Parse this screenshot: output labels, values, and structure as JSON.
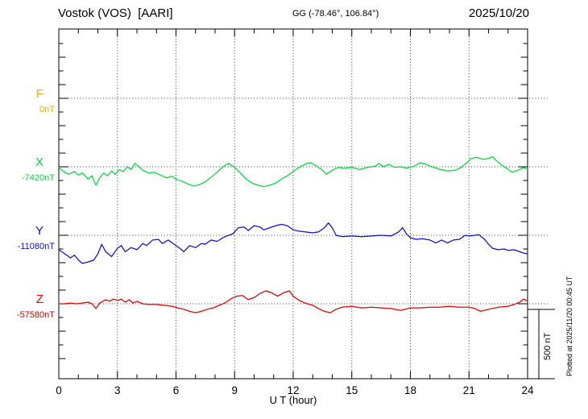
{
  "header": {
    "station_title": "Vostok (VOS)  [AARI]",
    "coordinates": "GG (-78.46°, 106.84°)",
    "date": "2025/10/20"
  },
  "annotations": {
    "scale_bar_label": "500 nT",
    "plotted_at": "Plotted at 2025/11/20 00:45 UT"
  },
  "chart_data": {
    "type": "line",
    "title": "Vostok (VOS) [AARI] magnetogram 2025/10/20",
    "xlabel": "U T (hour)",
    "x_axis": {
      "min": 0,
      "max": 24,
      "major_tick_interval": 3,
      "minor_tick_interval": 1,
      "tick_labels": [
        "0",
        "3",
        "6",
        "9",
        "12",
        "15",
        "18",
        "21",
        "24"
      ]
    },
    "y_axis": {
      "units": "nT",
      "minor_tick_nT": 100,
      "baseline_spacing_nT": 500,
      "grid": "dotted horizontal line at each component baseline"
    },
    "scale_bar_nT": 500,
    "legend_position": "left-margin",
    "series": [
      {
        "name": "F",
        "color": "#FFA800",
        "baseline_value_label": "0nT",
        "points": []
      },
      {
        "name": "X",
        "color": "#00D83C",
        "baseline_value_label": "-7420nT",
        "points": [
          [
            0,
            -5
          ],
          [
            0.2,
            -30
          ],
          [
            0.5,
            -55
          ],
          [
            0.8,
            -35
          ],
          [
            1,
            -60
          ],
          [
            1.2,
            -45
          ],
          [
            1.5,
            -90
          ],
          [
            1.7,
            -65
          ],
          [
            1.9,
            -135
          ],
          [
            2.1,
            -80
          ],
          [
            2.3,
            -45
          ],
          [
            2.5,
            -65
          ],
          [
            2.7,
            -30
          ],
          [
            2.9,
            -55
          ],
          [
            3.1,
            -20
          ],
          [
            3.3,
            -35
          ],
          [
            3.5,
            0
          ],
          [
            3.7,
            -20
          ],
          [
            3.9,
            25
          ],
          [
            4.1,
            0
          ],
          [
            4.3,
            -25
          ],
          [
            4.6,
            -45
          ],
          [
            4.9,
            -40
          ],
          [
            5.2,
            -60
          ],
          [
            5.5,
            -80
          ],
          [
            5.8,
            -70
          ],
          [
            6,
            -90
          ],
          [
            6.3,
            -105
          ],
          [
            6.6,
            -125
          ],
          [
            6.9,
            -140
          ],
          [
            7.2,
            -130
          ],
          [
            7.5,
            -110
          ],
          [
            7.8,
            -75
          ],
          [
            8.1,
            -40
          ],
          [
            8.4,
            0
          ],
          [
            8.7,
            25
          ],
          [
            9,
            -5
          ],
          [
            9.3,
            -45
          ],
          [
            9.6,
            -90
          ],
          [
            9.9,
            -120
          ],
          [
            10.2,
            -135
          ],
          [
            10.5,
            -145
          ],
          [
            10.8,
            -135
          ],
          [
            11.1,
            -120
          ],
          [
            11.4,
            -90
          ],
          [
            11.7,
            -65
          ],
          [
            12,
            -35
          ],
          [
            12.4,
            5
          ],
          [
            12.7,
            25
          ],
          [
            12.9,
            30
          ],
          [
            13.2,
            5
          ],
          [
            13.5,
            -25
          ],
          [
            13.7,
            -55
          ],
          [
            14,
            -25
          ],
          [
            14.3,
            -5
          ],
          [
            14.6,
            -10
          ],
          [
            15,
            -5
          ],
          [
            15.4,
            -20
          ],
          [
            15.8,
            -5
          ],
          [
            16.2,
            5
          ],
          [
            16.4,
            25
          ],
          [
            16.6,
            0
          ],
          [
            16.9,
            18
          ],
          [
            17.2,
            -5
          ],
          [
            17.5,
            0
          ],
          [
            17.8,
            -10
          ],
          [
            18.2,
            5
          ],
          [
            18.5,
            30
          ],
          [
            18.8,
            18
          ],
          [
            19.2,
            -5
          ],
          [
            19.5,
            -18
          ],
          [
            19.9,
            -30
          ],
          [
            20.3,
            -25
          ],
          [
            20.6,
            -5
          ],
          [
            20.9,
            30
          ],
          [
            21.1,
            60
          ],
          [
            21.4,
            70
          ],
          [
            21.7,
            55
          ],
          [
            22,
            60
          ],
          [
            22.2,
            75
          ],
          [
            22.4,
            45
          ],
          [
            22.7,
            10
          ],
          [
            23,
            -18
          ],
          [
            23.2,
            -40
          ],
          [
            23.5,
            -25
          ],
          [
            23.8,
            -5
          ],
          [
            24,
            -18
          ]
        ]
      },
      {
        "name": "Y",
        "color": "#0F0FD0",
        "baseline_value_label": "-11080nT",
        "points": [
          [
            0,
            -105
          ],
          [
            0.3,
            -135
          ],
          [
            0.6,
            -165
          ],
          [
            0.8,
            -145
          ],
          [
            1,
            -180
          ],
          [
            1.2,
            -205
          ],
          [
            1.5,
            -195
          ],
          [
            1.8,
            -180
          ],
          [
            2,
            -135
          ],
          [
            2.2,
            -65
          ],
          [
            2.4,
            -120
          ],
          [
            2.7,
            -155
          ],
          [
            3,
            -95
          ],
          [
            3.2,
            -75
          ],
          [
            3.4,
            -120
          ],
          [
            3.7,
            -90
          ],
          [
            4,
            -105
          ],
          [
            4.3,
            -60
          ],
          [
            4.5,
            -75
          ],
          [
            4.8,
            -35
          ],
          [
            5.1,
            -30
          ],
          [
            5.3,
            -60
          ],
          [
            5.6,
            -35
          ],
          [
            5.9,
            -65
          ],
          [
            6.2,
            -95
          ],
          [
            6.4,
            -120
          ],
          [
            6.7,
            -75
          ],
          [
            7,
            -90
          ],
          [
            7.3,
            -60
          ],
          [
            7.5,
            -65
          ],
          [
            7.8,
            -35
          ],
          [
            8.1,
            -45
          ],
          [
            8.4,
            -18
          ],
          [
            8.6,
            -5
          ],
          [
            8.9,
            10
          ],
          [
            9.2,
            55
          ],
          [
            9.5,
            60
          ],
          [
            9.7,
            35
          ],
          [
            10,
            70
          ],
          [
            10.3,
            60
          ],
          [
            10.5,
            40
          ],
          [
            10.8,
            55
          ],
          [
            11.1,
            70
          ],
          [
            11.4,
            80
          ],
          [
            11.7,
            70
          ],
          [
            12,
            40
          ],
          [
            12.3,
            30
          ],
          [
            12.6,
            25
          ],
          [
            13,
            18
          ],
          [
            13.3,
            25
          ],
          [
            13.6,
            55
          ],
          [
            13.8,
            90
          ],
          [
            14,
            55
          ],
          [
            14.2,
            0
          ],
          [
            14.5,
            -10
          ],
          [
            15,
            -5
          ],
          [
            15.5,
            -10
          ],
          [
            16,
            -5
          ],
          [
            16.5,
            0
          ],
          [
            17,
            -5
          ],
          [
            17.4,
            25
          ],
          [
            17.6,
            55
          ],
          [
            17.8,
            10
          ],
          [
            18,
            -18
          ],
          [
            18.3,
            -30
          ],
          [
            18.6,
            -25
          ],
          [
            19,
            -35
          ],
          [
            19.3,
            -55
          ],
          [
            19.6,
            -35
          ],
          [
            19.9,
            -55
          ],
          [
            20.2,
            -35
          ],
          [
            20.5,
            -30
          ],
          [
            20.8,
            0
          ],
          [
            21,
            -5
          ],
          [
            21.3,
            0
          ],
          [
            21.5,
            5
          ],
          [
            21.8,
            -30
          ],
          [
            22,
            -65
          ],
          [
            22.2,
            -95
          ],
          [
            22.5,
            -105
          ],
          [
            22.8,
            -100
          ],
          [
            23,
            -110
          ],
          [
            23.3,
            -105
          ],
          [
            23.6,
            -120
          ],
          [
            23.8,
            -130
          ],
          [
            24,
            -135
          ]
        ]
      },
      {
        "name": "Z",
        "color": "#E00000",
        "baseline_value_label": "-57580nT",
        "points": [
          [
            0,
            0
          ],
          [
            0.3,
            0
          ],
          [
            0.6,
            5
          ],
          [
            0.9,
            0
          ],
          [
            1.2,
            5
          ],
          [
            1.5,
            12
          ],
          [
            1.7,
            0
          ],
          [
            1.9,
            -35
          ],
          [
            2.1,
            5
          ],
          [
            2.4,
            30
          ],
          [
            2.6,
            18
          ],
          [
            2.8,
            35
          ],
          [
            3,
            25
          ],
          [
            3.2,
            35
          ],
          [
            3.4,
            12
          ],
          [
            3.6,
            30
          ],
          [
            3.8,
            5
          ],
          [
            4,
            18
          ],
          [
            4.3,
            0
          ],
          [
            4.6,
            -5
          ],
          [
            5,
            -5
          ],
          [
            5.4,
            -12
          ],
          [
            5.8,
            -18
          ],
          [
            6.1,
            -30
          ],
          [
            6.4,
            -40
          ],
          [
            6.7,
            -55
          ],
          [
            7,
            -65
          ],
          [
            7.3,
            -55
          ],
          [
            7.6,
            -40
          ],
          [
            7.9,
            -30
          ],
          [
            8.2,
            -12
          ],
          [
            8.5,
            5
          ],
          [
            8.8,
            35
          ],
          [
            9.1,
            55
          ],
          [
            9.4,
            60
          ],
          [
            9.7,
            30
          ],
          [
            10,
            45
          ],
          [
            10.3,
            75
          ],
          [
            10.6,
            95
          ],
          [
            10.9,
            80
          ],
          [
            11.2,
            55
          ],
          [
            11.5,
            80
          ],
          [
            11.8,
            95
          ],
          [
            12,
            55
          ],
          [
            12.3,
            25
          ],
          [
            12.6,
            5
          ],
          [
            13,
            -12
          ],
          [
            13.3,
            -35
          ],
          [
            13.6,
            -55
          ],
          [
            13.9,
            -65
          ],
          [
            14.2,
            -40
          ],
          [
            14.5,
            -25
          ],
          [
            15,
            -18
          ],
          [
            15.5,
            -30
          ],
          [
            16,
            -25
          ],
          [
            16.5,
            -30
          ],
          [
            17,
            -35
          ],
          [
            17.5,
            -48
          ],
          [
            18,
            -30
          ],
          [
            18.5,
            -30
          ],
          [
            19,
            -25
          ],
          [
            19.5,
            -25
          ],
          [
            20,
            -18
          ],
          [
            20.5,
            -25
          ],
          [
            21,
            -25
          ],
          [
            21.3,
            -35
          ],
          [
            21.6,
            -55
          ],
          [
            22,
            -40
          ],
          [
            22.5,
            -25
          ],
          [
            23,
            -18
          ],
          [
            23.3,
            -5
          ],
          [
            23.6,
            12
          ],
          [
            23.8,
            35
          ],
          [
            24,
            18
          ]
        ]
      }
    ]
  }
}
